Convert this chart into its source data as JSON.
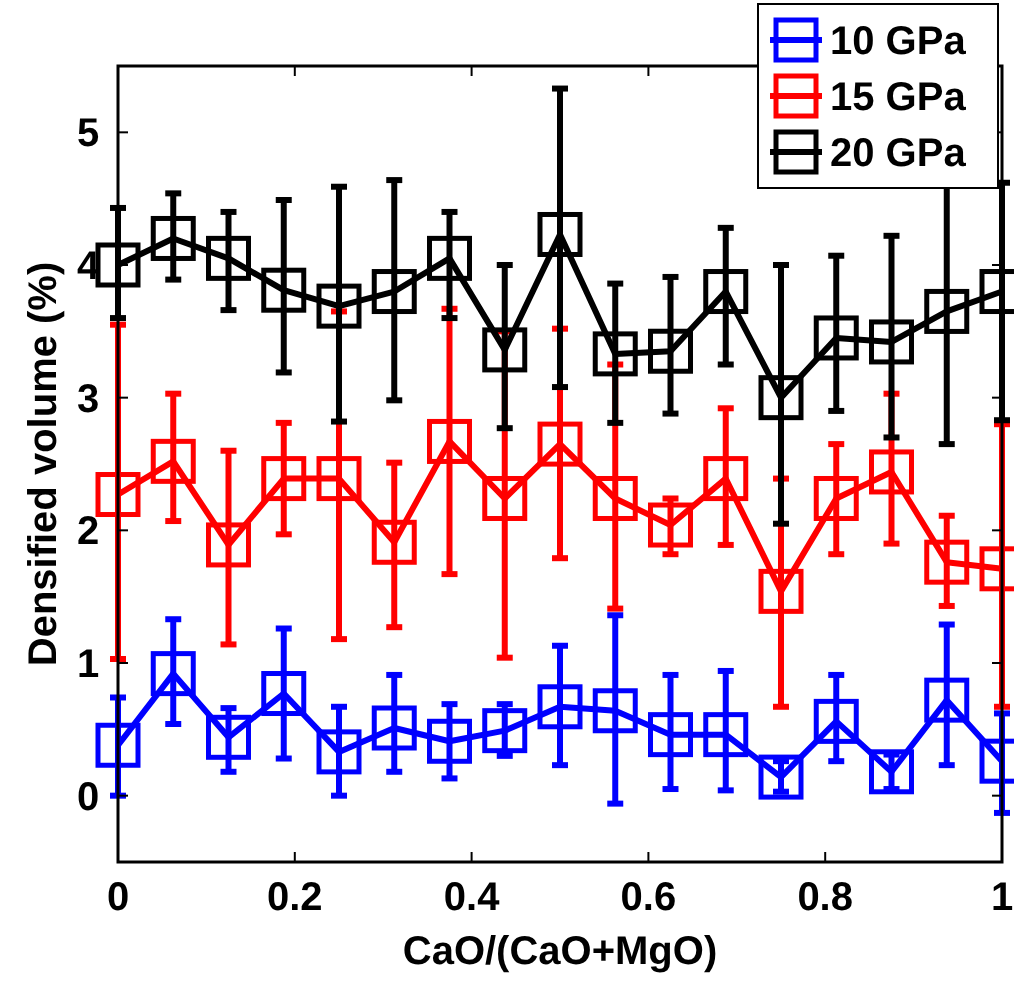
{
  "chart_data": {
    "type": "line",
    "xlabel": "CaO/(CaO+MgO)",
    "ylabel": "Densified volume (%)",
    "x": [
      0,
      0.0625,
      0.125,
      0.1875,
      0.25,
      0.3125,
      0.375,
      0.4375,
      0.5,
      0.5625,
      0.625,
      0.6875,
      0.75,
      0.8125,
      0.875,
      0.9375,
      1
    ],
    "xlim": [
      0,
      1
    ],
    "xticks": [
      0,
      0.2,
      0.4,
      0.6,
      0.8,
      1
    ],
    "ylim": [
      -0.5,
      5.5
    ],
    "yticks": [
      0,
      1,
      2,
      3,
      4,
      5
    ],
    "grid": false,
    "legend": "top right",
    "marker": "square",
    "line_style": "solid",
    "series": [
      {
        "name": "10 GPa",
        "color": "#0000ff",
        "values": [
          0.38,
          0.92,
          0.44,
          0.77,
          0.33,
          0.51,
          0.41,
          0.49,
          0.67,
          0.64,
          0.46,
          0.46,
          0.14,
          0.56,
          0.18,
          0.72,
          0.26
        ],
        "errors": [
          [
            0,
            0.74
          ],
          [
            0.54,
            1.33
          ],
          [
            0.18,
            0.66
          ],
          [
            0.28,
            1.26
          ],
          [
            0,
            0.67
          ],
          [
            0.18,
            0.91
          ],
          [
            0.13,
            0.69
          ],
          [
            0.3,
            0.69
          ],
          [
            0.23,
            1.13
          ],
          [
            -0.06,
            1.36
          ],
          [
            0.05,
            0.91
          ],
          [
            0.04,
            0.94
          ],
          [
            0.03,
            0.26
          ],
          [
            0.26,
            0.91
          ],
          [
            0.05,
            0.31
          ],
          [
            0.23,
            1.29
          ],
          [
            -0.13,
            0.62
          ]
        ]
      },
      {
        "name": "15 GPa",
        "color": "#ff0000",
        "values": [
          2.27,
          2.52,
          1.89,
          2.39,
          2.39,
          1.91,
          2.67,
          2.24,
          2.65,
          2.24,
          2.04,
          2.39,
          1.54,
          2.24,
          2.44,
          1.76,
          1.71
        ],
        "errors": [
          [
            1.03,
            3.55
          ],
          [
            2.07,
            3.03
          ],
          [
            1.14,
            2.6
          ],
          [
            1.97,
            2.81
          ],
          [
            1.18,
            3.65
          ],
          [
            1.27,
            2.51
          ],
          [
            1.67,
            3.67
          ],
          [
            1.04,
            3.5
          ],
          [
            1.79,
            3.52
          ],
          [
            1.41,
            3.25
          ],
          [
            1.82,
            2.24
          ],
          [
            1.89,
            2.92
          ],
          [
            0.67,
            2.39
          ],
          [
            1.82,
            2.65
          ],
          [
            1.9,
            3.03
          ],
          [
            1.43,
            2.11
          ],
          [
            0.67,
            2.8
          ]
        ]
      },
      {
        "name": "20 GPa",
        "color": "#000000",
        "values": [
          4.0,
          4.2,
          4.05,
          3.81,
          3.69,
          3.8,
          4.05,
          3.36,
          4.23,
          3.33,
          3.35,
          3.8,
          3.0,
          3.45,
          3.42,
          3.65,
          3.8
        ],
        "errors": [
          [
            3.6,
            4.43
          ],
          [
            3.89,
            4.54
          ],
          [
            3.66,
            4.4
          ],
          [
            3.19,
            4.49
          ],
          [
            2.82,
            4.59
          ],
          [
            2.98,
            4.64
          ],
          [
            3.6,
            4.4
          ],
          [
            2.77,
            4.0
          ],
          [
            3.08,
            5.33
          ],
          [
            2.81,
            3.86
          ],
          [
            2.88,
            3.91
          ],
          [
            3.25,
            4.28
          ],
          [
            2.05,
            4.0
          ],
          [
            2.9,
            4.07
          ],
          [
            2.7,
            4.22
          ],
          [
            2.65,
            4.62
          ],
          [
            2.83,
            4.62
          ]
        ]
      }
    ]
  }
}
